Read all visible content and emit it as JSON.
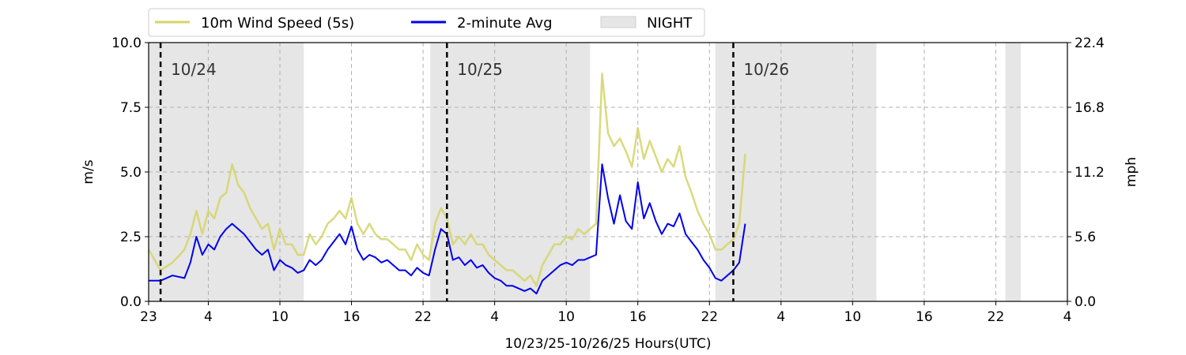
{
  "chart_data": {
    "type": "line",
    "xlabel": "10/23/25-10/26/25  Hours(UTC)",
    "ylabel": "m/s",
    "ylabel_right": "mph",
    "x_unit": "hours since 10/23/25 23:00 UTC",
    "xlim": [
      0,
      77
    ],
    "ylim": [
      0,
      10
    ],
    "y_ticks": [
      0.0,
      2.5,
      5.0,
      7.5,
      10.0
    ],
    "y_tick_labels": [
      "0.0",
      "2.5",
      "5.0",
      "7.5",
      "10.0"
    ],
    "y_right_tick_labels": [
      "0.0",
      "5.6",
      "11.2",
      "16.8",
      "22.4"
    ],
    "x_ticks": [
      0,
      5,
      11,
      17,
      23,
      29,
      35,
      41,
      47,
      53,
      59,
      65,
      71,
      77
    ],
    "x_tick_labels": [
      "23",
      "4",
      "10",
      "16",
      "22",
      "4",
      "10",
      "16",
      "22",
      "4",
      "10",
      "16",
      "22",
      "4"
    ],
    "grid": true,
    "legend_placement": "top-left, above plot",
    "legend": [
      {
        "label": "10m Wind Speed (5s)",
        "color": "#d4d466",
        "kind": "line"
      },
      {
        "label": "2-minute Avg",
        "color": "#0000ee",
        "kind": "line"
      },
      {
        "label": "NIGHT",
        "color": "#e6e6e6",
        "kind": "patch"
      }
    ],
    "night_spans": [
      [
        0,
        13
      ],
      [
        23.6,
        37
      ],
      [
        47.5,
        61
      ],
      [
        71.8,
        73.1
      ]
    ],
    "day_markers": [
      {
        "x": 1,
        "label": "10/24"
      },
      {
        "x": 25,
        "label": "10/25"
      },
      {
        "x": 49,
        "label": "10/26"
      }
    ],
    "series": [
      {
        "name": "10m Wind Speed (5s)",
        "color": "#d4d466",
        "x": [
          0,
          1,
          2,
          3,
          3.5,
          4,
          4.5,
          5,
          5.5,
          6,
          6.5,
          7,
          7.5,
          8,
          8.5,
          9,
          9.5,
          10,
          10.5,
          11,
          11.5,
          12,
          12.5,
          13,
          13.5,
          14,
          14.5,
          15,
          15.5,
          16,
          16.5,
          17,
          17.5,
          18,
          18.5,
          19,
          19.5,
          20,
          20.5,
          21,
          21.5,
          22,
          22.5,
          23,
          23.5,
          24,
          24.5,
          25,
          25.5,
          26,
          26.5,
          27,
          27.5,
          28,
          28.5,
          29,
          29.5,
          30,
          30.5,
          31,
          31.5,
          32,
          32.5,
          33,
          33.5,
          34,
          34.5,
          35,
          35.5,
          36,
          36.5,
          37,
          37.5,
          38,
          38.5,
          39,
          39.5,
          40,
          40.5,
          41,
          41.5,
          42,
          42.5,
          43,
          43.5,
          44,
          44.5,
          45,
          45.5,
          46,
          46.5,
          47,
          47.5,
          48,
          48.5,
          49,
          49.5,
          50
        ],
        "y": [
          2.0,
          1.2,
          1.5,
          2.0,
          2.6,
          3.5,
          2.6,
          3.5,
          3.2,
          4.0,
          4.2,
          5.3,
          4.5,
          4.2,
          3.6,
          3.2,
          2.8,
          3.0,
          2.0,
          2.8,
          2.2,
          2.2,
          1.8,
          1.8,
          2.6,
          2.2,
          2.5,
          3.0,
          3.2,
          3.5,
          3.2,
          4.0,
          3.0,
          2.6,
          3.0,
          2.6,
          2.4,
          2.4,
          2.2,
          2.0,
          2.0,
          1.6,
          2.2,
          1.8,
          1.6,
          3.0,
          3.6,
          3.2,
          2.2,
          2.5,
          2.2,
          2.6,
          2.2,
          2.2,
          1.8,
          1.6,
          1.4,
          1.2,
          1.2,
          1.0,
          0.8,
          1.0,
          0.6,
          1.4,
          1.8,
          2.2,
          2.2,
          2.5,
          2.4,
          2.8,
          2.6,
          2.8,
          3.0,
          8.8,
          6.5,
          6.0,
          6.3,
          5.8,
          5.2,
          6.7,
          5.5,
          6.2,
          5.6,
          5.0,
          5.5,
          5.2,
          6.0,
          4.8,
          4.2,
          3.5,
          3.0,
          2.6,
          2.0,
          2.0,
          2.2,
          2.4,
          3.0,
          5.7
        ]
      },
      {
        "name": "2-minute Avg",
        "color": "#0000ee",
        "x": [
          0,
          1,
          2,
          3,
          3.5,
          4,
          4.5,
          5,
          5.5,
          6,
          6.5,
          7,
          7.5,
          8,
          8.5,
          9,
          9.5,
          10,
          10.5,
          11,
          11.5,
          12,
          12.5,
          13,
          13.5,
          14,
          14.5,
          15,
          15.5,
          16,
          16.5,
          17,
          17.5,
          18,
          18.5,
          19,
          19.5,
          20,
          20.5,
          21,
          21.5,
          22,
          22.5,
          23,
          23.5,
          24,
          24.5,
          25,
          25.5,
          26,
          26.5,
          27,
          27.5,
          28,
          28.5,
          29,
          29.5,
          30,
          30.5,
          31,
          31.5,
          32,
          32.5,
          33,
          33.5,
          34,
          34.5,
          35,
          35.5,
          36,
          36.5,
          37,
          37.5,
          38,
          38.5,
          39,
          39.5,
          40,
          40.5,
          41,
          41.5,
          42,
          42.5,
          43,
          43.5,
          44,
          44.5,
          45,
          45.5,
          46,
          46.5,
          47,
          47.5,
          48,
          48.5,
          49,
          49.5,
          50
        ],
        "y": [
          0.8,
          0.8,
          1.0,
          0.9,
          1.5,
          2.5,
          1.8,
          2.2,
          2.0,
          2.5,
          2.8,
          3.0,
          2.8,
          2.6,
          2.3,
          2.0,
          1.8,
          2.0,
          1.2,
          1.6,
          1.4,
          1.3,
          1.1,
          1.2,
          1.6,
          1.4,
          1.6,
          2.0,
          2.3,
          2.6,
          2.2,
          2.9,
          2.0,
          1.6,
          1.8,
          1.7,
          1.5,
          1.6,
          1.4,
          1.2,
          1.2,
          1.0,
          1.3,
          1.1,
          1.0,
          2.0,
          2.8,
          2.6,
          1.6,
          1.7,
          1.4,
          1.6,
          1.3,
          1.4,
          1.1,
          0.9,
          0.8,
          0.6,
          0.6,
          0.5,
          0.4,
          0.5,
          0.3,
          0.8,
          1.0,
          1.2,
          1.4,
          1.5,
          1.4,
          1.6,
          1.6,
          1.7,
          1.8,
          5.3,
          4.0,
          3.0,
          4.1,
          3.1,
          2.8,
          4.6,
          3.2,
          3.8,
          3.1,
          2.6,
          3.0,
          2.9,
          3.4,
          2.6,
          2.3,
          2.0,
          1.6,
          1.3,
          0.9,
          0.8,
          1.0,
          1.2,
          1.5,
          3.0
        ]
      }
    ]
  }
}
